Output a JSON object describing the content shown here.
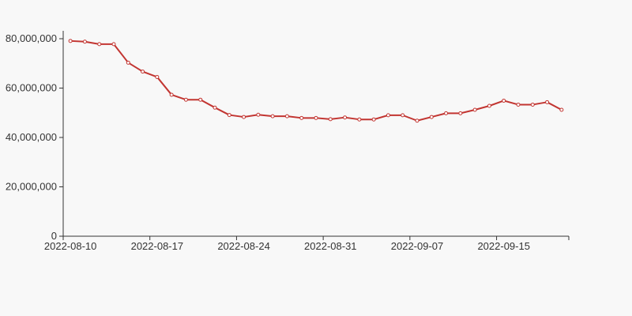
{
  "chart_data": {
    "type": "line",
    "title": "",
    "xlabel": "",
    "ylabel": "",
    "ylim": [
      0,
      80000000
    ],
    "yticks": [
      0,
      20000000,
      40000000,
      60000000,
      80000000
    ],
    "ytick_labels": [
      "0",
      "20,000,000",
      "40,000,000",
      "60,000,000",
      "80,000,000"
    ],
    "grid": false,
    "line_color": "#c23531",
    "categories": [
      "2022-08-10",
      "2022-08-11",
      "2022-08-12",
      "2022-08-13",
      "2022-08-15",
      "2022-08-16",
      "2022-08-17",
      "2022-08-18",
      "2022-08-19",
      "2022-08-20",
      "2022-08-22",
      "2022-08-23",
      "2022-08-24",
      "2022-08-25",
      "2022-08-26",
      "2022-08-27",
      "2022-08-29",
      "2022-08-30",
      "2022-08-31",
      "2022-09-01",
      "2022-09-02",
      "2022-09-03",
      "2022-09-05",
      "2022-09-06",
      "2022-09-07",
      "2022-09-08",
      "2022-09-09",
      "2022-09-10",
      "2022-09-13",
      "2022-09-14",
      "2022-09-15",
      "2022-09-16",
      "2022-09-17",
      "2022-09-19",
      "2022-09-20"
    ],
    "xtick_labels": [
      "2022-08-10",
      "2022-08-17",
      "2022-08-24",
      "2022-08-31",
      "2022-09-07",
      "2022-09-15"
    ],
    "values": [
      79100000,
      78800000,
      77800000,
      77800000,
      70300000,
      66700000,
      64500000,
      57300000,
      55300000,
      55300000,
      52100000,
      49100000,
      48300000,
      49200000,
      48600000,
      48600000,
      47900000,
      47900000,
      47400000,
      48100000,
      47300000,
      47300000,
      49000000,
      49000000,
      46800000,
      48300000,
      49800000,
      49800000,
      51200000,
      52800000,
      54900000,
      53300000,
      53300000,
      54300000,
      51200000
    ]
  }
}
